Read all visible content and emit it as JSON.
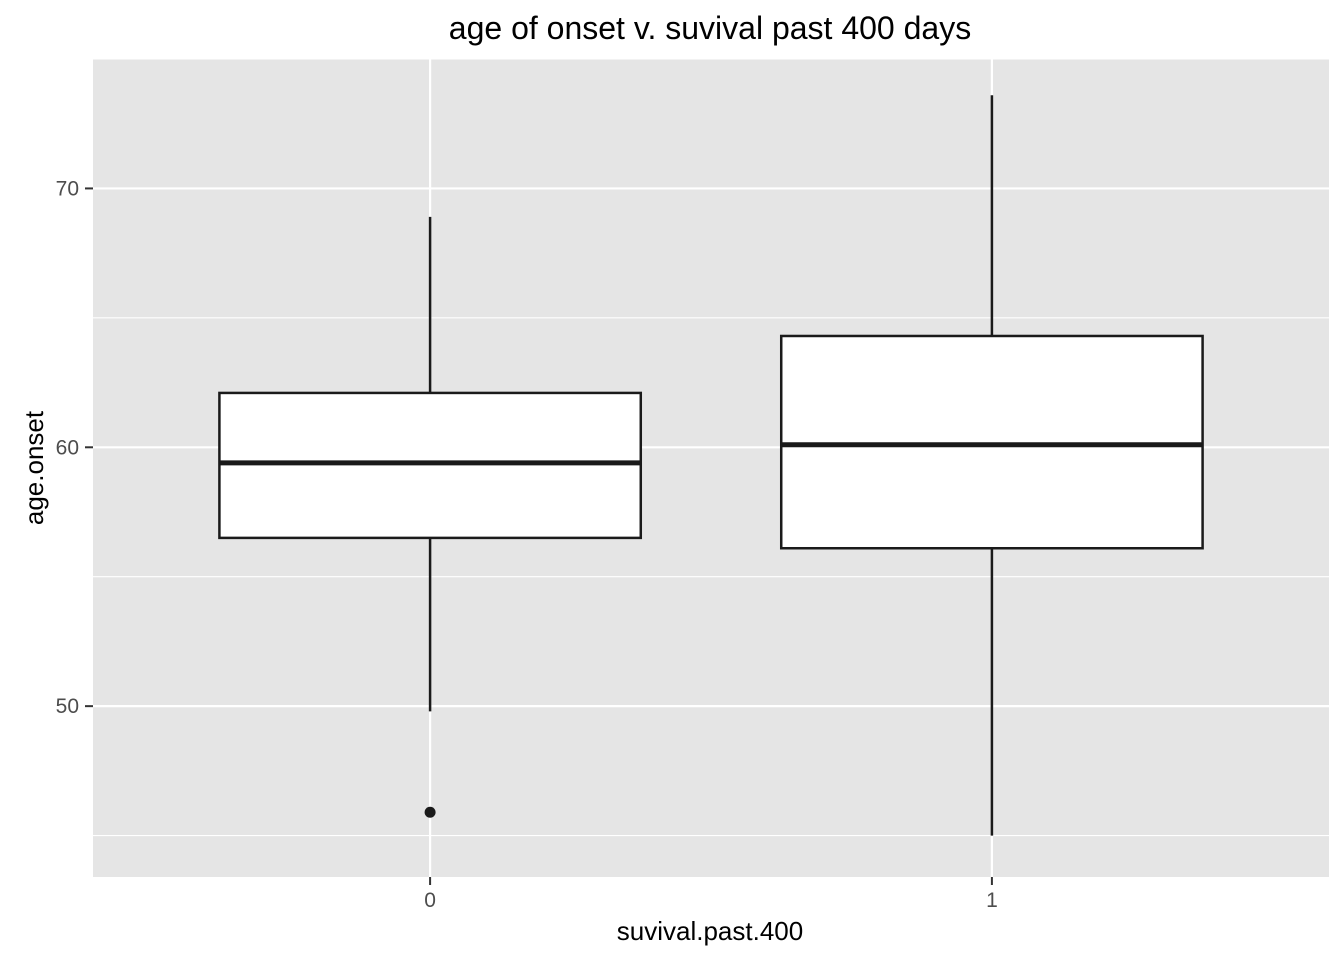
{
  "chart_data": {
    "type": "boxplot",
    "title": "age of onset v. suvival past 400 days",
    "xlabel": "suvival.past.400",
    "ylabel": "age.onset",
    "categories": [
      "0",
      "1"
    ],
    "boxes": [
      {
        "category": "0",
        "whisker_low": 49.8,
        "q1": 56.5,
        "median": 59.4,
        "q3": 62.1,
        "whisker_high": 68.9,
        "outliers": [
          45.9
        ]
      },
      {
        "category": "1",
        "whisker_low": 45.0,
        "q1": 56.1,
        "median": 60.1,
        "q3": 64.3,
        "whisker_high": 73.6,
        "outliers": []
      }
    ],
    "ylim": [
      43.4,
      75.0
    ],
    "yticks": [
      50,
      60,
      70
    ],
    "ytick_labels": [
      "50",
      "60",
      "70"
    ],
    "grid": true,
    "colors": {
      "panel": "#e5e5e5",
      "grid": "#ffffff",
      "box_fill": "#ffffff",
      "box_line": "#1a1a1a",
      "tick": "#333333"
    }
  }
}
